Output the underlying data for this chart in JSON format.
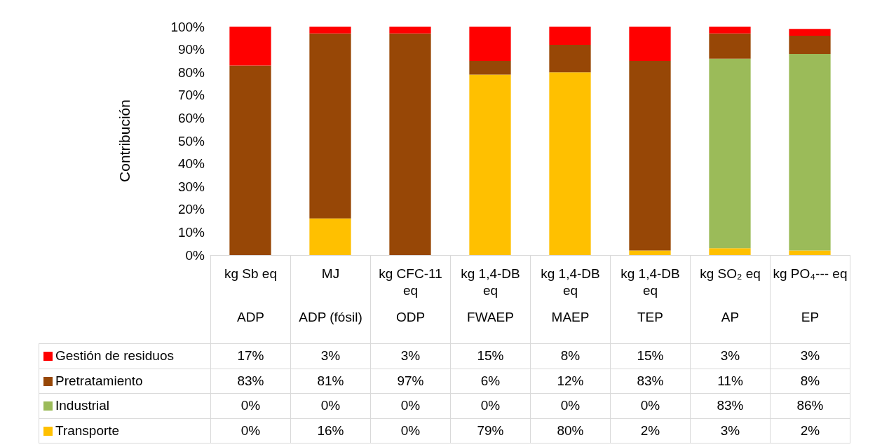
{
  "chart_data": {
    "type": "bar",
    "stacked": true,
    "ylabel": "Contribución",
    "categories": [
      "kg Sb eq\nADP",
      "MJ\nADP (fósil)",
      "kg CFC-11 eq\nODP",
      "kg 1,4-DB eq\nFWAEP",
      "kg 1,4-DB eq\nMAEP",
      "kg 1,4-DB eq\nTEP",
      "kg SO₂ eq\nAP",
      "kg PO₄--- eq\nEP"
    ],
    "series": [
      {
        "name": "Transporte",
        "color": "#ffc000",
        "values": [
          0,
          16,
          0,
          79,
          80,
          2,
          3,
          2
        ],
        "value_labels": [
          "0%",
          "16%",
          "0%",
          "79%",
          "80%",
          "2%",
          "3%",
          "2%"
        ]
      },
      {
        "name": "Industrial",
        "color": "#9bbb59",
        "values": [
          0,
          0,
          0,
          0,
          0,
          0,
          83,
          86
        ],
        "value_labels": [
          "0%",
          "0%",
          "0%",
          "0%",
          "0%",
          "0%",
          "83%",
          "86%"
        ]
      },
      {
        "name": "Pretratamiento",
        "color": "#974706",
        "values": [
          83,
          81,
          97,
          6,
          12,
          83,
          11,
          8
        ],
        "value_labels": [
          "83%",
          "81%",
          "97%",
          "6%",
          "12%",
          "83%",
          "11%",
          "8%"
        ]
      },
      {
        "name": "Gestión de residuos",
        "color": "#ff0000",
        "values": [
          17,
          3,
          3,
          15,
          8,
          15,
          3,
          3
        ],
        "value_labels": [
          "17%",
          "3%",
          "3%",
          "15%",
          "8%",
          "15%",
          "3%",
          "3%"
        ]
      }
    ],
    "ylim": [
      0,
      100
    ],
    "yticks": [
      {
        "value": 0,
        "label": "0%"
      },
      {
        "value": 10,
        "label": "10%"
      },
      {
        "value": 20,
        "label": "20%"
      },
      {
        "value": 30,
        "label": "30%"
      },
      {
        "value": 40,
        "label": "40%"
      },
      {
        "value": 50,
        "label": "50%"
      },
      {
        "value": 60,
        "label": "60%"
      },
      {
        "value": 70,
        "label": "70%"
      },
      {
        "value": 80,
        "label": "80%"
      },
      {
        "value": 90,
        "label": "90%"
      },
      {
        "value": 100,
        "label": "100%"
      }
    ],
    "grid": false,
    "legend": "bottom"
  }
}
